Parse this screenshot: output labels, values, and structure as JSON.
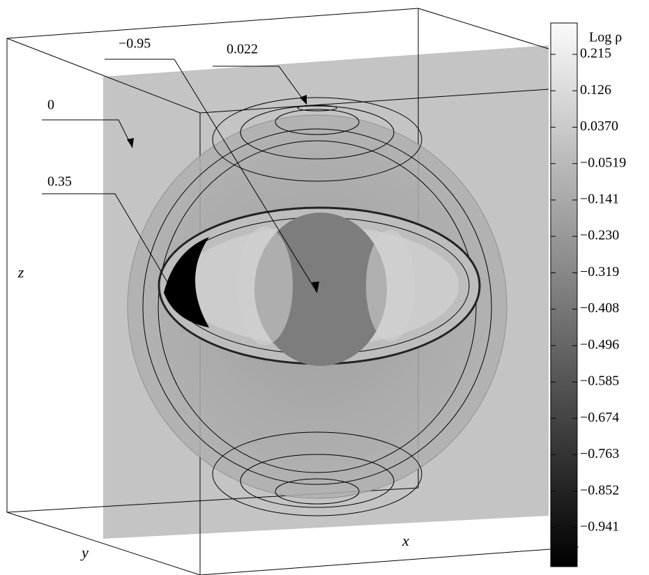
{
  "figure": {
    "annotations": [
      {
        "label": "−0.95"
      },
      {
        "label": "0.022"
      },
      {
        "label": "0"
      },
      {
        "label": "0.35"
      }
    ],
    "axes": {
      "x": "x",
      "y": "y",
      "z": "z"
    },
    "colorbar": {
      "title": "Log ρ",
      "labels": [
        "0.215",
        "0.126",
        "0.0370",
        "−0.0519",
        "−0.141",
        "−0.230",
        "−0.319",
        "−0.408",
        "−0.496",
        "−0.585",
        "−0.674",
        "−0.763",
        "−0.852",
        "−0.941"
      ]
    }
  }
}
